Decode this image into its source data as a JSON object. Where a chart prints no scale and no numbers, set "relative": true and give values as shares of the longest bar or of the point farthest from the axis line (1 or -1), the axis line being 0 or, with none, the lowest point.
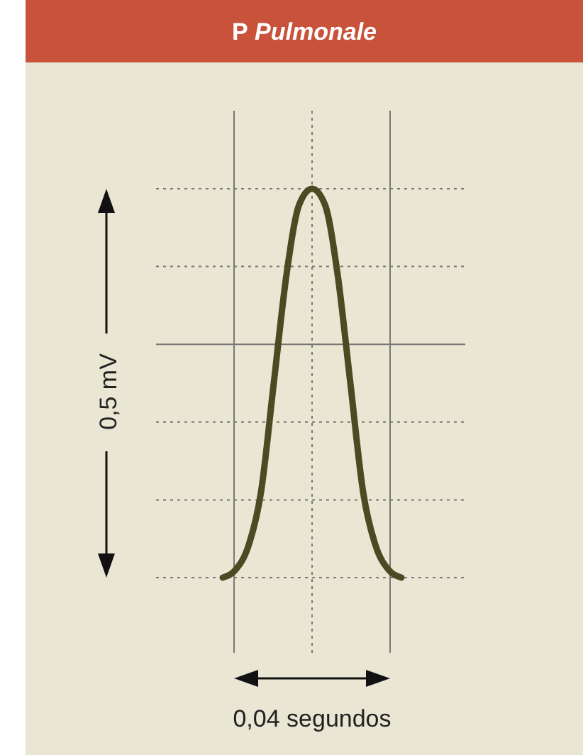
{
  "chart_data": {
    "type": "line",
    "title": "P Pulmonale",
    "relative": true,
    "grid": true,
    "categories": [
      null,
      null,
      null,
      null,
      null,
      null,
      null,
      null,
      null,
      null,
      null,
      null,
      null,
      null,
      null
    ],
    "series": [
      {
        "color": "#4b4a22",
        "values": [
          0,
          0.02,
          0.08,
          0.22,
          0.5,
          0.78,
          0.96,
          1,
          0.96,
          0.78,
          0.5,
          0.22,
          0.08,
          0.02,
          0
        ]
      }
    ],
    "annotations": [
      "0,5 mV",
      "0,04 segundos"
    ],
    "line_style": "solid"
  }
}
